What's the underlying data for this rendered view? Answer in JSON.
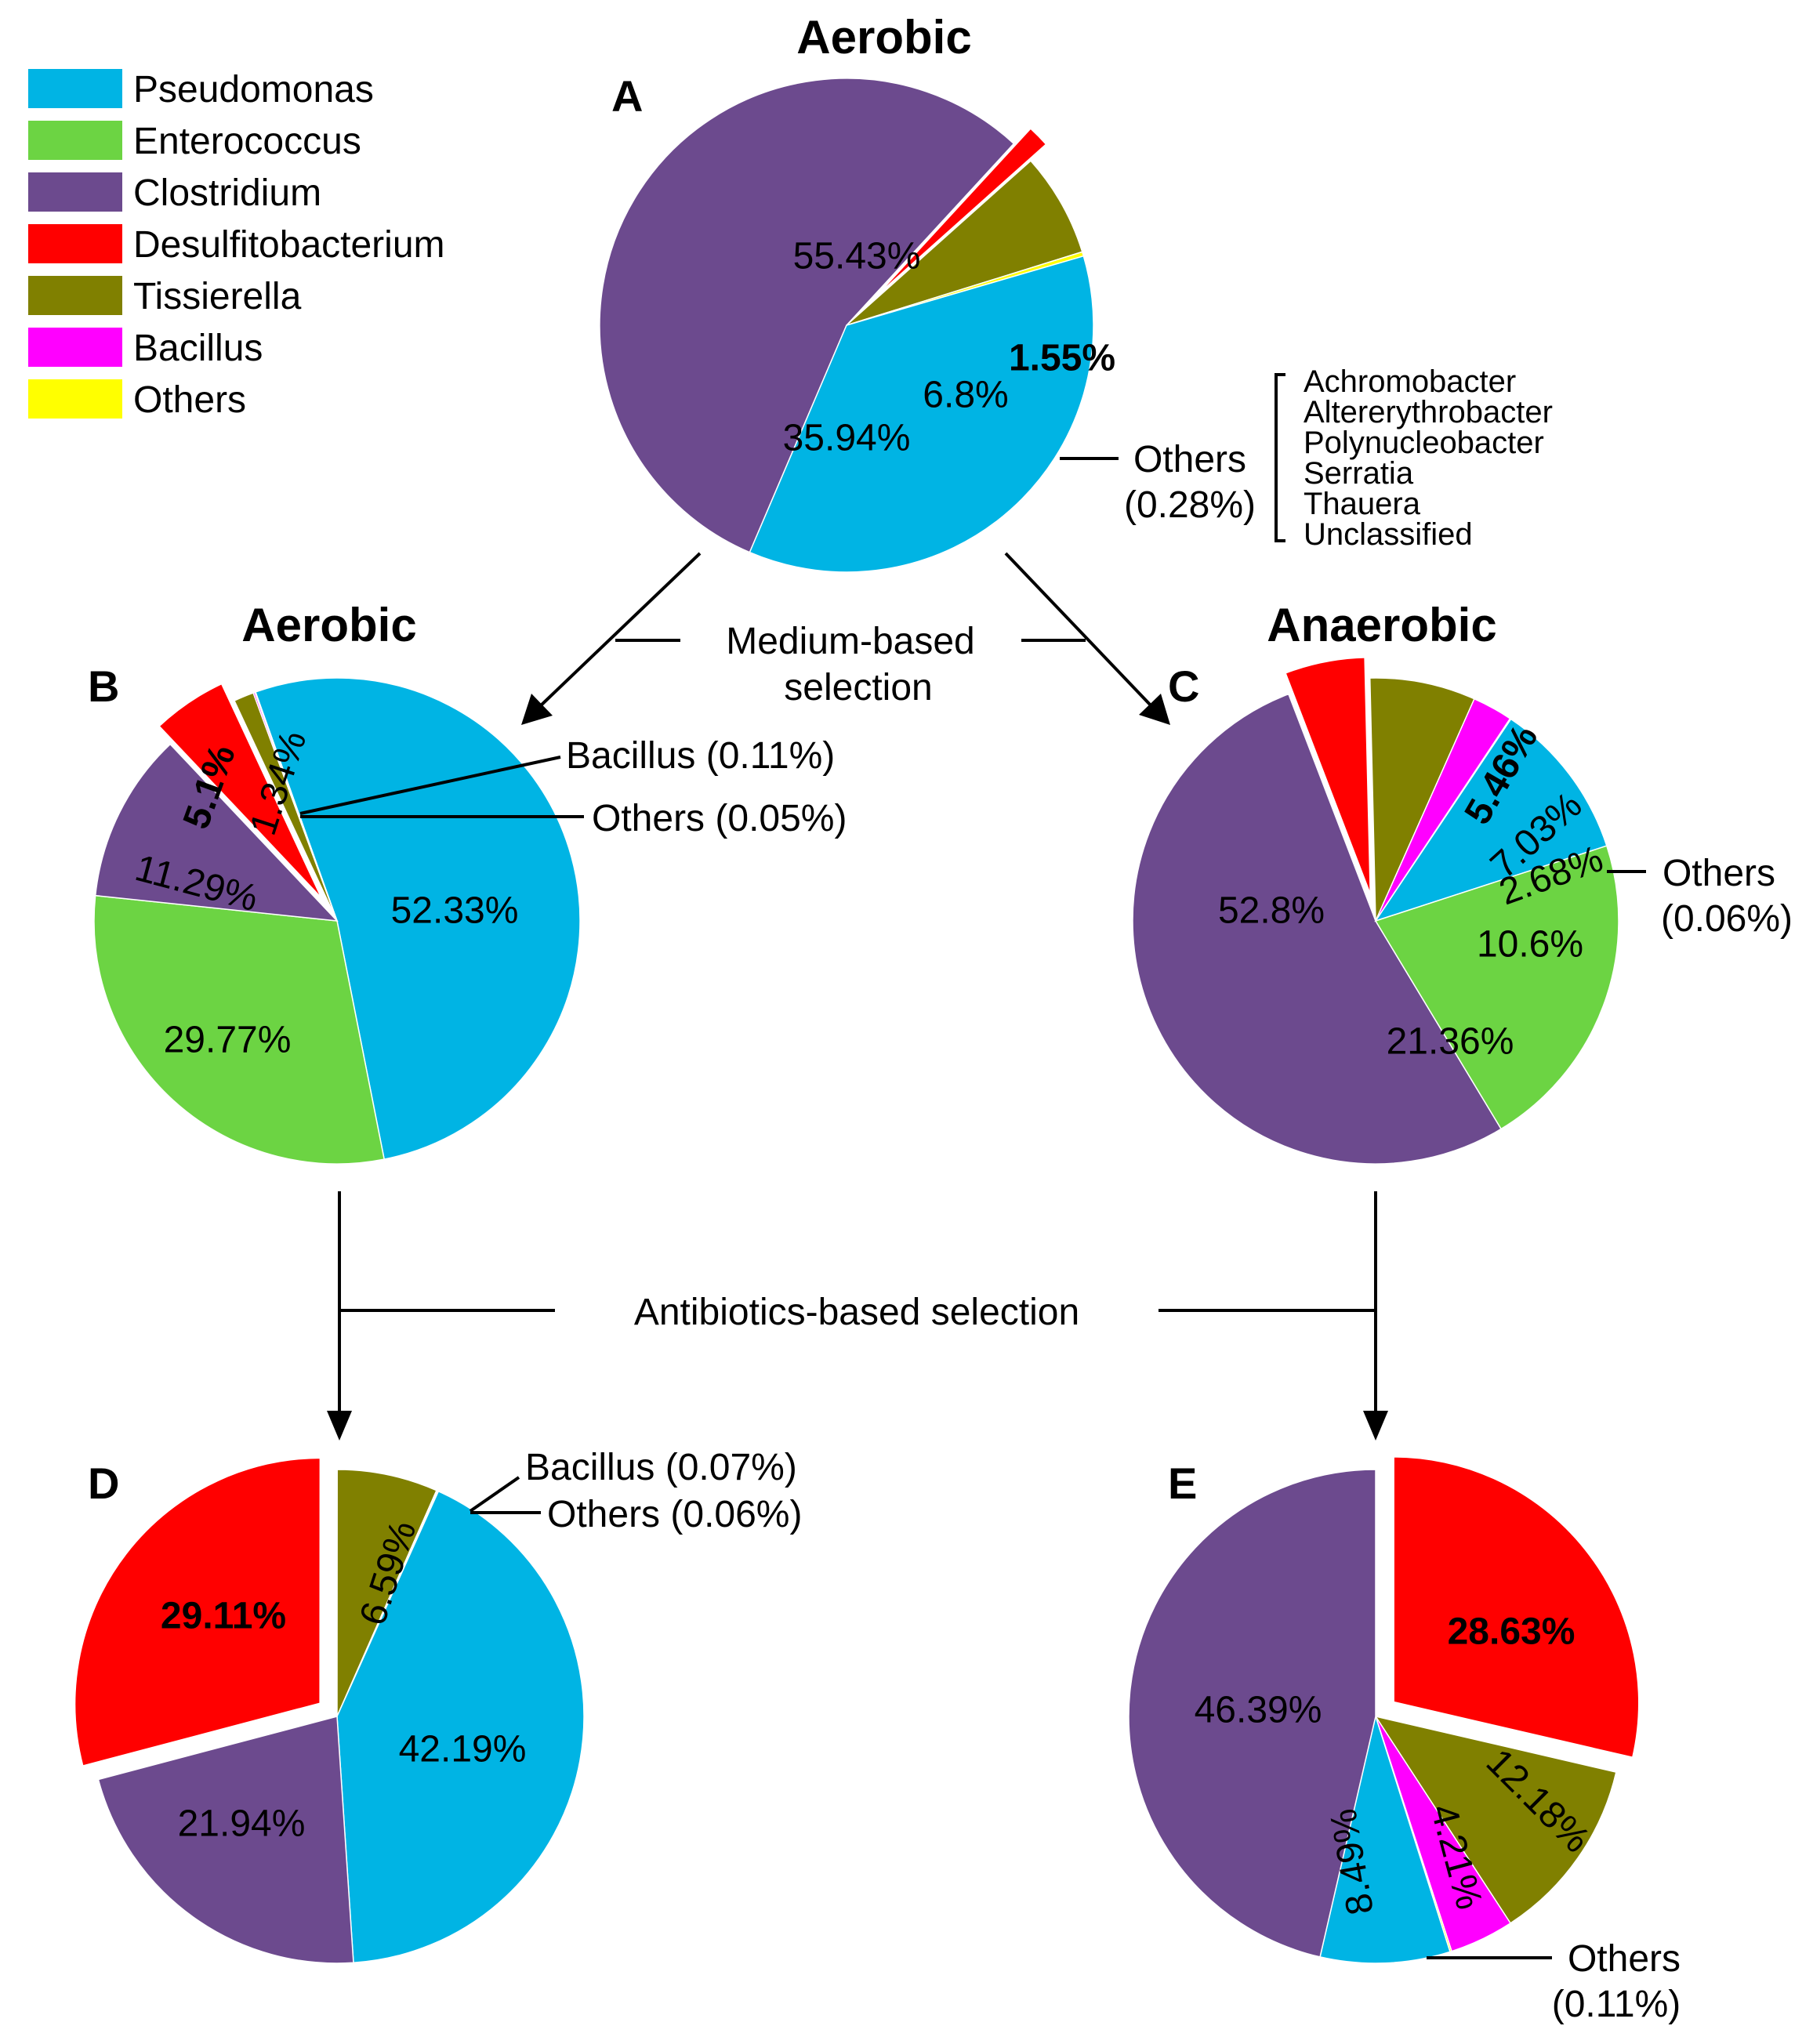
{
  "legend": [
    {
      "name": "Pseudomonas",
      "color": "#00B4E4"
    },
    {
      "name": "Enterococcus",
      "color": "#6CD443"
    },
    {
      "name": "Clostridium",
      "color": "#6C4A8E"
    },
    {
      "name": "Desulfitobacterium",
      "color": "#FF0000"
    },
    {
      "name": "Tissierella",
      "color": "#808000"
    },
    {
      "name": "Bacillus",
      "color": "#FF00FF"
    },
    {
      "name": "Others",
      "color": "#FFFF00"
    }
  ],
  "flow": {
    "medium_label": [
      "Medium-based",
      "selection"
    ],
    "antibiotics_label": "Antibiotics-based selection"
  },
  "headers": {
    "A": "Aerobic",
    "B": "Aerobic",
    "C": "Anaerobic"
  },
  "others_genera": [
    "Achromobacter",
    "Altererythrobacter",
    "Polynucleobacter",
    "Serratia",
    "Thauera",
    "Unclassified"
  ],
  "annotations": {
    "A_others": [
      "Others",
      "(0.28%)"
    ],
    "B_bacillus": "Bacillus (0.11%)",
    "B_others": "Others (0.05%)",
    "C_others": [
      "Others",
      "(0.06%)"
    ],
    "D_bacillus": "Bacillus (0.07%)",
    "D_others": "Others (0.06%)",
    "E_others": [
      "Others",
      "(0.11%)"
    ]
  },
  "chart_data": [
    {
      "type": "pie",
      "panel": "A",
      "title": "Aerobic",
      "slices": [
        {
          "category": "Clostridium",
          "value": 55.43,
          "label": "55.43%"
        },
        {
          "category": "Desulfitobacterium",
          "value": 1.55,
          "label": "1.55%",
          "bold": true
        },
        {
          "category": "Tissierella",
          "value": 6.8,
          "label": "6.8%"
        },
        {
          "category": "Others",
          "value": 0.28,
          "label": ""
        },
        {
          "category": "Pseudomonas",
          "value": 35.94,
          "label": "35.94%"
        }
      ]
    },
    {
      "type": "pie",
      "panel": "B",
      "title": "Aerobic",
      "slices": [
        {
          "category": "Pseudomonas",
          "value": 52.33,
          "label": "52.33%"
        },
        {
          "category": "Enterococcus",
          "value": 29.77,
          "label": "29.77%"
        },
        {
          "category": "Clostridium",
          "value": 11.29,
          "label": "11.29%"
        },
        {
          "category": "Desulfitobacterium",
          "value": 5.1,
          "label": "5.1%",
          "bold": true
        },
        {
          "category": "Tissierella",
          "value": 1.34,
          "label": "1.34%"
        },
        {
          "category": "Bacillus",
          "value": 0.11,
          "label": ""
        },
        {
          "category": "Others",
          "value": 0.05,
          "label": ""
        }
      ]
    },
    {
      "type": "pie",
      "panel": "C",
      "title": "Anaerobic",
      "slices": [
        {
          "category": "Clostridium",
          "value": 52.8,
          "label": "52.8%"
        },
        {
          "category": "Desulfitobacterium",
          "value": 5.46,
          "label": "5.46%",
          "bold": true
        },
        {
          "category": "Tissierella",
          "value": 7.03,
          "label": "7.03%"
        },
        {
          "category": "Bacillus",
          "value": 2.68,
          "label": "2.68%"
        },
        {
          "category": "Others",
          "value": 0.06,
          "label": ""
        },
        {
          "category": "Pseudomonas",
          "value": 10.6,
          "label": "10.6%"
        },
        {
          "category": "Enterococcus",
          "value": 21.36,
          "label": "21.36%"
        }
      ]
    },
    {
      "type": "pie",
      "panel": "D",
      "title": "",
      "slices": [
        {
          "category": "Desulfitobacterium",
          "value": 29.11,
          "label": "29.11%",
          "bold": true
        },
        {
          "category": "Tissierella",
          "value": 6.59,
          "label": "6.59%"
        },
        {
          "category": "Bacillus",
          "value": 0.07,
          "label": ""
        },
        {
          "category": "Others",
          "value": 0.06,
          "label": ""
        },
        {
          "category": "Pseudomonas",
          "value": 42.19,
          "label": "42.19%"
        },
        {
          "category": "Clostridium",
          "value": 21.94,
          "label": "21.94%"
        }
      ]
    },
    {
      "type": "pie",
      "panel": "E",
      "title": "",
      "slices": [
        {
          "category": "Desulfitobacterium",
          "value": 28.63,
          "label": "28.63%",
          "bold": true
        },
        {
          "category": "Tissierella",
          "value": 12.18,
          "label": "12.18%"
        },
        {
          "category": "Bacillus",
          "value": 4.21,
          "label": "4.21%"
        },
        {
          "category": "Others",
          "value": 0.11,
          "label": ""
        },
        {
          "category": "Pseudomonas",
          "value": 8.49,
          "label": "8.49%"
        },
        {
          "category": "Clostridium",
          "value": 46.39,
          "label": "46.39%"
        }
      ]
    }
  ]
}
